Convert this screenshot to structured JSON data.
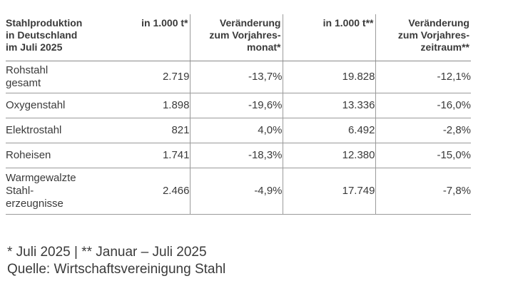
{
  "table": {
    "header": [
      [
        "Stahlproduktion",
        "in Deutschland",
        "im Juli 2025"
      ],
      [
        "in 1.000 t*"
      ],
      [
        "Veränderung",
        "zum Vorjahres-",
        "monat*"
      ],
      [
        "in 1.000 t**"
      ],
      [
        "Veränderung",
        "zum Vorjahres-",
        "zeitraum**"
      ]
    ],
    "rows": [
      {
        "label": [
          "Rohstahl",
          "gesamt"
        ],
        "values": [
          "2.719",
          "-13,7%",
          "19.828",
          "-12,1%"
        ]
      },
      {
        "label": [
          "Oxygenstahl"
        ],
        "values": [
          "1.898",
          "-19,6%",
          "13.336",
          "-16,0%"
        ]
      },
      {
        "label": [
          "Elektrostahl"
        ],
        "values": [
          "821",
          "4,0%",
          "6.492",
          "-2,8%"
        ]
      },
      {
        "label": [
          "Roheisen"
        ],
        "values": [
          "1.741",
          "-18,3%",
          "12.380",
          "-15,0%"
        ]
      },
      {
        "label": [
          "Warmgewalzte",
          "Stahl-",
          "erzeugnisse"
        ],
        "values": [
          "2.466",
          "-4,9%",
          "17.749",
          "-7,8%"
        ]
      }
    ]
  },
  "footnote": {
    "line1": "* Juli 2025 | ** Januar – Juli 2025",
    "line2": "Quelle: Wirtschaftsvereinigung Stahl"
  }
}
